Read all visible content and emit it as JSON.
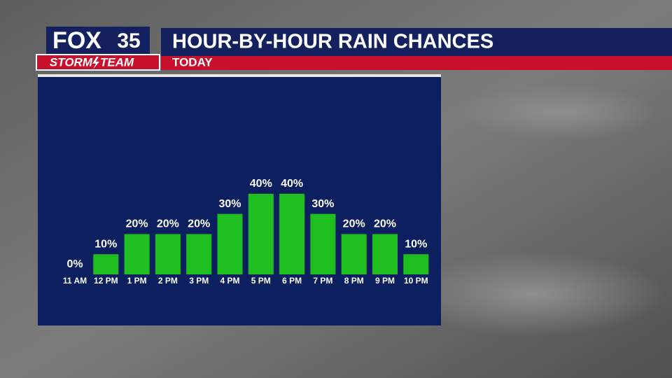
{
  "logo": {
    "brand": "FOX",
    "channel": "35",
    "team_left": "STORM",
    "team_right": "TEAM"
  },
  "chart_data": {
    "type": "bar",
    "title": "HOUR-BY-HOUR RAIN CHANCES",
    "subtitle": "TODAY",
    "categories": [
      "11 AM",
      "12 PM",
      "1 PM",
      "2 PM",
      "3 PM",
      "4 PM",
      "5 PM",
      "6 PM",
      "7 PM",
      "8 PM",
      "9 PM",
      "10 PM"
    ],
    "values": [
      0,
      10,
      20,
      20,
      20,
      30,
      40,
      40,
      30,
      20,
      20,
      10
    ],
    "value_labels": [
      "0%",
      "10%",
      "20%",
      "20%",
      "20%",
      "30%",
      "40%",
      "40%",
      "30%",
      "20%",
      "20%",
      "10%"
    ],
    "color": "#1fbf1f"
  }
}
